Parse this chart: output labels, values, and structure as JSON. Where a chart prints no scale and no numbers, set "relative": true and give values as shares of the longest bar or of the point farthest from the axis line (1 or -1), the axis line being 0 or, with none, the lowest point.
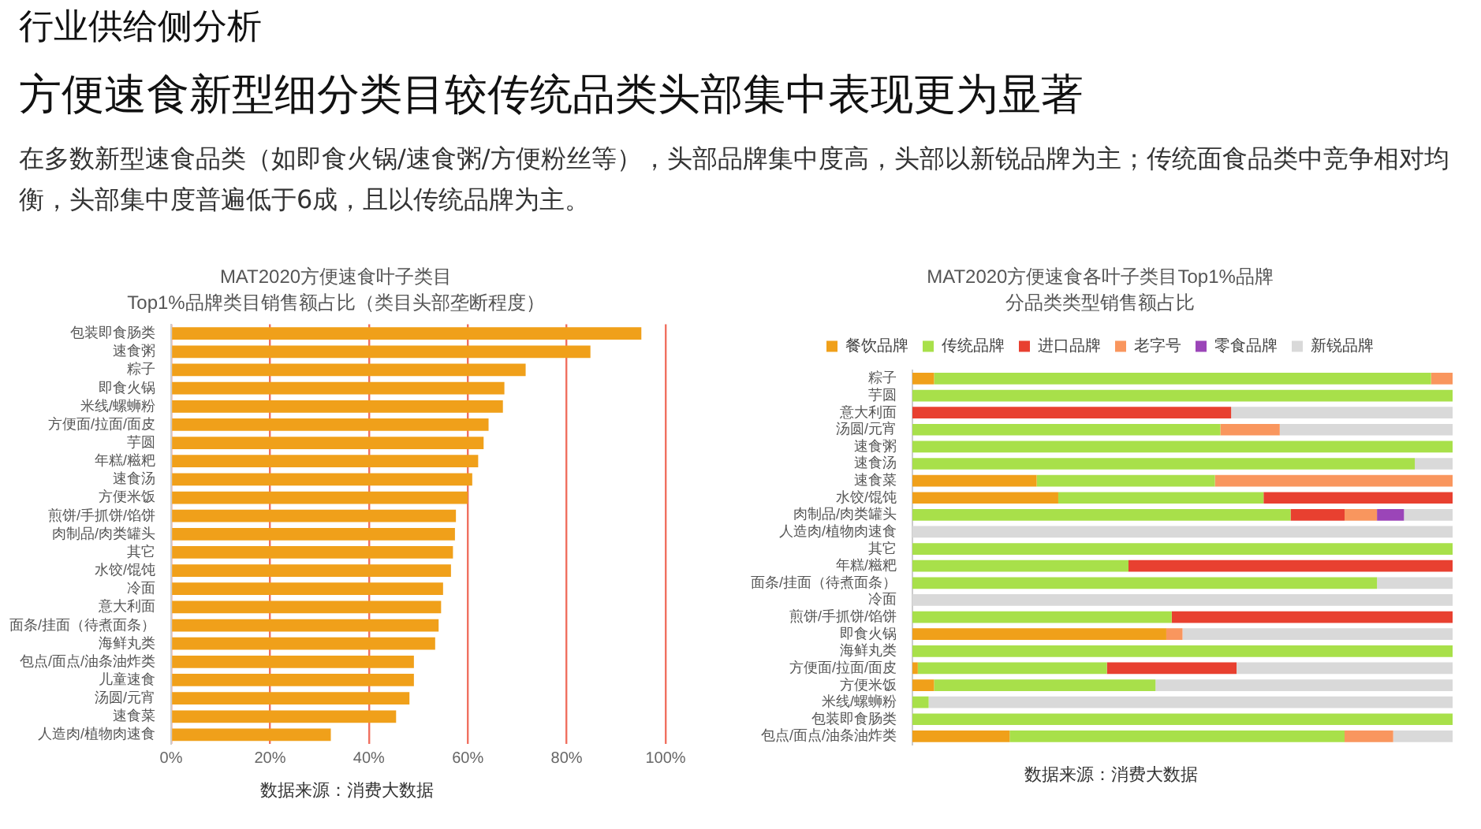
{
  "chart_data": [
    {
      "type": "other",
      "title": "行业供给侧分析",
      "subtitle": "方便速食新型细分类目较传统品类头部集中表现更为显著",
      "annotations": [
        "在多数新型速食品类（如即食火锅/速食粥/方便粉丝等），头部品牌集中度高，头部以新锐品牌为主；传统面食品类中竞争相对均衡，头部集中度普遍低于6成，且以传统品牌为主。"
      ]
    },
    {
      "type": "bar",
      "orientation": "horizontal",
      "title": "MAT2020方便速食叶子类目",
      "subtitle": "Top1%品牌类目销售额占比（类目头部垄断程度）",
      "categories": [
        "包装即食肠类",
        "速食粥",
        "粽子",
        "即食火锅",
        "米线/螺蛳粉",
        "方便面/拉面/面皮",
        "芋圆",
        "年糕/糍粑",
        "速食汤",
        "方便米饭",
        "煎饼/手抓饼/馅饼",
        "肉制品/肉类罐头",
        "其它",
        "水饺/馄饨",
        "冷面",
        "意大利面",
        "面条/挂面（待煮面条）",
        "海鲜丸类",
        "包点/面点/油条油炸类",
        "儿童速食",
        "汤圆/元宵",
        "速食菜",
        "人造肉/植物肉速食"
      ],
      "values": [
        95.1,
        84.8,
        71.7,
        67.4,
        67.1,
        64.2,
        63.2,
        62.1,
        60.9,
        60,
        57.6,
        57.4,
        57,
        56.6,
        55,
        54.6,
        54.1,
        53.4,
        49.1,
        49.1,
        48.2,
        45.5,
        32.3
      ],
      "color": "#f0a01a",
      "xlim": [
        0,
        100
      ],
      "xticks": [
        {
          "value": 0,
          "label": "0%"
        },
        {
          "value": 20,
          "label": "20%"
        },
        {
          "value": 40,
          "label": "40%"
        },
        {
          "value": 60,
          "label": "60%"
        },
        {
          "value": 80,
          "label": "80%"
        },
        {
          "value": 100,
          "label": "100%"
        }
      ],
      "grid": "x",
      "annotations": [
        "数据来源：消费大数据"
      ]
    },
    {
      "type": "bar",
      "orientation": "horizontal",
      "stacked": true,
      "relative": true,
      "legend": "top",
      "title": "MAT2020方便速食各叶子类目Top1%品牌",
      "subtitle": "分品类类型销售额占比",
      "categories": [
        "粽子",
        "芋圆",
        "意大利面",
        "汤圆/元宵",
        "速食粥",
        "速食汤",
        "速食菜",
        "水饺/馄饨",
        "肉制品/肉类罐头",
        "人造肉/植物肉速食",
        "其它",
        "年糕/糍粑",
        "面条/挂面（待煮面条）",
        "冷面",
        "煎饼/手抓饼/馅饼",
        "即食火锅",
        "海鲜丸类",
        "方便面/拉面/面皮",
        "方便米饭",
        "米线/螺蛳粉",
        "包装即食肠类",
        "包点/面点/油条油炸类"
      ],
      "series": [
        {
          "name": "餐饮品牌",
          "color": "#f0a01a",
          "values": [
            0.04,
            null,
            null,
            null,
            null,
            null,
            0.23,
            0.27,
            null,
            null,
            null,
            null,
            null,
            null,
            null,
            0.47,
            null,
            0.01,
            0.04,
            null,
            null,
            0.18
          ]
        },
        {
          "name": "传统品牌",
          "color": "#a8e04a",
          "values": [
            0.92,
            1,
            null,
            0.57,
            1,
            0.93,
            0.33,
            0.38,
            0.7,
            null,
            1,
            0.4,
            0.86,
            null,
            0.48,
            null,
            1,
            0.35,
            0.41,
            0.03,
            1,
            0.62
          ]
        },
        {
          "name": "进口品牌",
          "color": "#e84030",
          "values": [
            null,
            null,
            0.59,
            null,
            null,
            null,
            null,
            0.35,
            0.1,
            null,
            null,
            0.6,
            null,
            null,
            0.52,
            null,
            null,
            0.24,
            null,
            null,
            null,
            null
          ]
        },
        {
          "name": "老字号",
          "color": "#f9965e",
          "values": [
            0.04,
            null,
            null,
            0.11,
            null,
            null,
            0.44,
            null,
            0.06,
            null,
            null,
            null,
            null,
            null,
            null,
            0.03,
            null,
            null,
            null,
            null,
            null,
            0.09
          ]
        },
        {
          "name": "零食品牌",
          "color": "#9b45b8",
          "values": [
            null,
            null,
            null,
            null,
            null,
            null,
            null,
            null,
            0.05,
            null,
            null,
            null,
            null,
            null,
            null,
            null,
            null,
            null,
            null,
            null,
            null,
            null
          ]
        },
        {
          "name": "新锐品牌",
          "color": "#d9d9d9",
          "values": [
            null,
            null,
            0.41,
            0.32,
            null,
            0.07,
            null,
            null,
            0.09,
            1,
            null,
            null,
            0.14,
            1,
            null,
            0.5,
            null,
            0.4,
            0.55,
            0.97,
            null,
            0.11
          ]
        }
      ],
      "annotations": [
        "数据来源：消费大数据"
      ]
    }
  ]
}
